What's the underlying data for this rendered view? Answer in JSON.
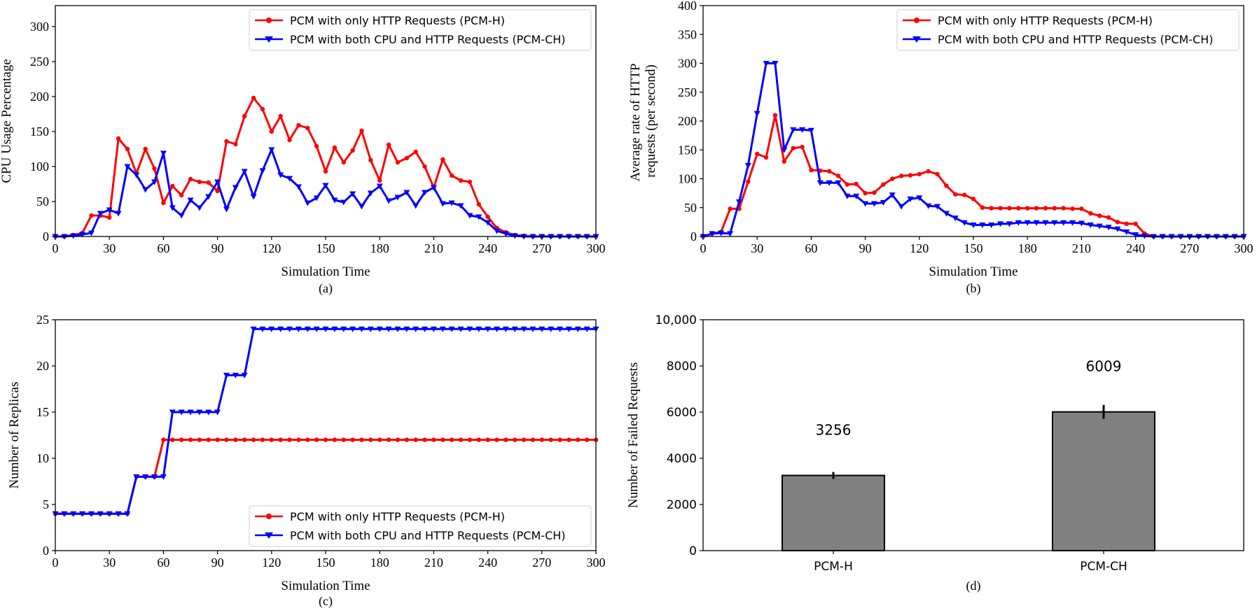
{
  "chart_data": [
    {
      "type": "line",
      "caption": "(a)",
      "xlabel": "Simulation Time",
      "ylabel": "CPU Usage Percentage",
      "xlim": [
        0,
        300
      ],
      "ylim": [
        0,
        330
      ],
      "xticks": [
        "0",
        "30",
        "60",
        "90",
        "120",
        "150",
        "180",
        "210",
        "240",
        "270",
        "300"
      ],
      "yticks": [
        "0",
        "50",
        "100",
        "150",
        "200",
        "250",
        "300"
      ],
      "legend_position": "top-right",
      "series": [
        {
          "name": "PCM with only HTTP Requests (PCM-H)",
          "color": "#ff0000",
          "marker": "circle",
          "x": [
            0,
            5,
            10,
            15,
            20,
            25,
            30,
            35,
            40,
            45,
            50,
            55,
            60,
            65,
            70,
            75,
            80,
            85,
            90,
            95,
            100,
            105,
            110,
            115,
            120,
            125,
            130,
            135,
            140,
            145,
            150,
            155,
            160,
            165,
            170,
            175,
            180,
            185,
            190,
            195,
            200,
            205,
            210,
            215,
            220,
            225,
            230,
            235,
            240,
            245,
            250,
            255,
            260,
            265,
            270,
            275,
            280,
            285,
            290,
            295,
            300
          ],
          "y": [
            0,
            0,
            2,
            5,
            30,
            30,
            27,
            140,
            125,
            90,
            125,
            97,
            48,
            72,
            59,
            82,
            78,
            77,
            65,
            136,
            132,
            172,
            198,
            182,
            150,
            172,
            138,
            159,
            155,
            129,
            93,
            127,
            106,
            123,
            151,
            109,
            80,
            131,
            106,
            112,
            121,
            100,
            70,
            110,
            87,
            80,
            78,
            46,
            28,
            12,
            6,
            2,
            1,
            0,
            0,
            0,
            0,
            0,
            0,
            0,
            0
          ]
        },
        {
          "name": "PCM with both CPU and HTTP Requests (PCM-CH)",
          "color": "#0000ff",
          "marker": "tri_down",
          "x": [
            0,
            5,
            10,
            15,
            20,
            25,
            30,
            35,
            40,
            45,
            50,
            55,
            60,
            65,
            70,
            75,
            80,
            85,
            90,
            95,
            100,
            105,
            110,
            115,
            120,
            125,
            130,
            135,
            140,
            145,
            150,
            155,
            160,
            165,
            170,
            175,
            180,
            185,
            190,
            195,
            200,
            205,
            210,
            215,
            220,
            225,
            230,
            235,
            240,
            245,
            250,
            255,
            260,
            265,
            270,
            275,
            280,
            285,
            290,
            295,
            300
          ],
          "y": [
            0,
            0,
            1,
            3,
            5,
            33,
            38,
            33,
            100,
            88,
            67,
            78,
            119,
            41,
            30,
            52,
            41,
            57,
            78,
            39,
            70,
            93,
            57,
            94,
            124,
            88,
            83,
            71,
            48,
            55,
            73,
            52,
            49,
            61,
            43,
            62,
            72,
            51,
            56,
            63,
            44,
            63,
            70,
            47,
            48,
            44,
            30,
            28,
            20,
            8,
            4,
            1,
            0,
            0,
            0,
            0,
            0,
            0,
            0,
            0,
            0
          ]
        }
      ]
    },
    {
      "type": "line",
      "caption": "(b)",
      "xlabel": "Simulation Time",
      "ylabel": "Average rate of HTTP requests (per second)",
      "xlim": [
        0,
        300
      ],
      "ylim": [
        0,
        400
      ],
      "xticks": [
        "0",
        "30",
        "60",
        "90",
        "120",
        "150",
        "180",
        "210",
        "240",
        "270",
        "300"
      ],
      "yticks": [
        "0",
        "50",
        "100",
        "150",
        "200",
        "250",
        "300",
        "350",
        "400"
      ],
      "legend_position": "top-right",
      "series": [
        {
          "name": "PCM with only HTTP Requests (PCM-H)",
          "color": "#ff0000",
          "marker": "circle",
          "x": [
            0,
            5,
            10,
            15,
            20,
            25,
            30,
            35,
            40,
            45,
            50,
            55,
            60,
            65,
            70,
            75,
            80,
            85,
            90,
            95,
            100,
            105,
            110,
            115,
            120,
            125,
            130,
            135,
            140,
            145,
            150,
            155,
            160,
            165,
            170,
            175,
            180,
            185,
            190,
            195,
            200,
            205,
            210,
            215,
            220,
            225,
            230,
            235,
            240,
            245,
            250,
            255,
            260,
            265,
            270,
            275,
            280,
            285,
            290,
            295,
            300
          ],
          "y": [
            0,
            5,
            8,
            48,
            48,
            95,
            143,
            137,
            210,
            130,
            153,
            155,
            115,
            114,
            113,
            105,
            90,
            91,
            75,
            76,
            90,
            100,
            105,
            106,
            108,
            113,
            108,
            88,
            73,
            72,
            65,
            50,
            49,
            49,
            49,
            49,
            49,
            49,
            49,
            49,
            49,
            48,
            48,
            40,
            36,
            33,
            25,
            22,
            22,
            5,
            0,
            0,
            0,
            0,
            0,
            0,
            0,
            0,
            0,
            0,
            0
          ]
        },
        {
          "name": "PCM with both CPU and HTTP Requests (PCM-CH)",
          "color": "#0000ff",
          "marker": "tri_down",
          "x": [
            0,
            5,
            10,
            15,
            20,
            25,
            30,
            35,
            40,
            45,
            50,
            55,
            60,
            65,
            70,
            75,
            80,
            85,
            90,
            95,
            100,
            105,
            110,
            115,
            120,
            125,
            130,
            135,
            140,
            145,
            150,
            155,
            160,
            165,
            170,
            175,
            180,
            185,
            190,
            195,
            200,
            205,
            210,
            215,
            220,
            225,
            230,
            235,
            240,
            245,
            250,
            255,
            260,
            265,
            270,
            275,
            280,
            285,
            290,
            295,
            300
          ],
          "y": [
            0,
            5,
            6,
            5,
            60,
            123,
            213,
            300,
            300,
            150,
            185,
            185,
            184,
            93,
            93,
            93,
            70,
            70,
            57,
            57,
            59,
            72,
            52,
            65,
            67,
            53,
            52,
            40,
            32,
            24,
            20,
            20,
            20,
            22,
            22,
            24,
            24,
            24,
            24,
            24,
            24,
            24,
            23,
            20,
            18,
            16,
            13,
            8,
            3,
            1,
            0,
            0,
            0,
            0,
            0,
            0,
            0,
            0,
            0,
            0,
            0
          ]
        }
      ]
    },
    {
      "type": "line",
      "caption": "(c)",
      "xlabel": "Simulation Time",
      "ylabel": "Number of Replicas",
      "xlim": [
        0,
        300
      ],
      "ylim": [
        0,
        25
      ],
      "xticks": [
        "0",
        "30",
        "60",
        "90",
        "120",
        "150",
        "180",
        "210",
        "240",
        "270",
        "300"
      ],
      "yticks": [
        "0",
        "5",
        "10",
        "15",
        "20",
        "25"
      ],
      "legend_position": "bottom-right",
      "series": [
        {
          "name": "PCM with only HTTP Requests (PCM-H)",
          "color": "#ff0000",
          "marker": "circle",
          "x": [
            0,
            5,
            10,
            15,
            20,
            25,
            30,
            35,
            40,
            45,
            50,
            55,
            60,
            65,
            70,
            75,
            80,
            85,
            90,
            95,
            100,
            105,
            110,
            115,
            120,
            125,
            130,
            135,
            140,
            145,
            150,
            155,
            160,
            165,
            170,
            175,
            180,
            185,
            190,
            195,
            200,
            205,
            210,
            215,
            220,
            225,
            230,
            235,
            240,
            245,
            250,
            255,
            260,
            265,
            270,
            275,
            280,
            285,
            290,
            295,
            300
          ],
          "y": [
            4,
            4,
            4,
            4,
            4,
            4,
            4,
            4,
            4,
            8,
            8,
            8,
            12,
            12,
            12,
            12,
            12,
            12,
            12,
            12,
            12,
            12,
            12,
            12,
            12,
            12,
            12,
            12,
            12,
            12,
            12,
            12,
            12,
            12,
            12,
            12,
            12,
            12,
            12,
            12,
            12,
            12,
            12,
            12,
            12,
            12,
            12,
            12,
            12,
            12,
            12,
            12,
            12,
            12,
            12,
            12,
            12,
            12,
            12,
            12,
            12
          ]
        },
        {
          "name": "PCM with both CPU and HTTP Requests (PCM-CH)",
          "color": "#0000ff",
          "marker": "tri_down",
          "x": [
            0,
            5,
            10,
            15,
            20,
            25,
            30,
            35,
            40,
            45,
            50,
            55,
            60,
            65,
            70,
            75,
            80,
            85,
            90,
            95,
            100,
            105,
            110,
            115,
            120,
            125,
            130,
            135,
            140,
            145,
            150,
            155,
            160,
            165,
            170,
            175,
            180,
            185,
            190,
            195,
            200,
            205,
            210,
            215,
            220,
            225,
            230,
            235,
            240,
            245,
            250,
            255,
            260,
            265,
            270,
            275,
            280,
            285,
            290,
            295,
            300
          ],
          "y": [
            4,
            4,
            4,
            4,
            4,
            4,
            4,
            4,
            4,
            8,
            8,
            8,
            8,
            15,
            15,
            15,
            15,
            15,
            15,
            19,
            19,
            19,
            24,
            24,
            24,
            24,
            24,
            24,
            24,
            24,
            24,
            24,
            24,
            24,
            24,
            24,
            24,
            24,
            24,
            24,
            24,
            24,
            24,
            24,
            24,
            24,
            24,
            24,
            24,
            24,
            24,
            24,
            24,
            24,
            24,
            24,
            24,
            24,
            24,
            24,
            24
          ]
        }
      ]
    },
    {
      "type": "bar",
      "caption": "(d)",
      "xlabel": "",
      "ylabel": "Number of Failed Requests",
      "ylim": [
        0,
        10000
      ],
      "yticks": [
        "0",
        "2000",
        "4000",
        "6000",
        "8000",
        "10,000"
      ],
      "categories": [
        "PCM-H",
        "PCM-CH"
      ],
      "values": [
        3256,
        6009
      ],
      "value_labels": [
        "3256",
        "6009"
      ],
      "error": [
        150,
        300
      ],
      "bar_color": "#808080"
    }
  ]
}
